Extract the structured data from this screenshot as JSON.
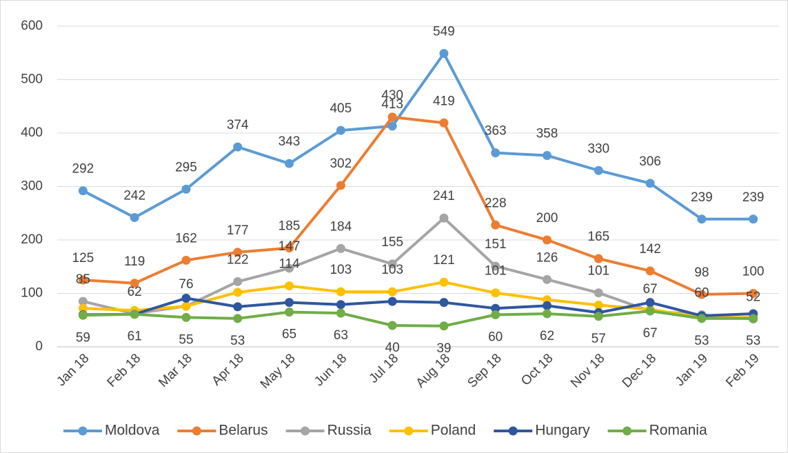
{
  "chart_data": {
    "type": "line",
    "categories": [
      "Jan 18",
      "Feb 18",
      "Mar 18",
      "Apr 18",
      "May 18",
      "Jun 18",
      "Jul 18",
      "Aug 18",
      "Sep 18",
      "Oct 18",
      "Nov 18",
      "Dec 18",
      "Jan 19",
      "Feb 19"
    ],
    "ylim": [
      0,
      600
    ],
    "yticks": [
      0,
      100,
      200,
      300,
      400,
      500,
      600
    ],
    "grid": true,
    "legend": "bottom",
    "series": [
      {
        "name": "Moldova",
        "color": "#5b9bd5",
        "data_labels": true,
        "label_position": "above",
        "values": [
          292,
          242,
          295,
          374,
          343,
          405,
          413,
          549,
          363,
          358,
          330,
          306,
          239,
          239
        ]
      },
      {
        "name": "Belarus",
        "color": "#ed7d31",
        "data_labels": true,
        "label_position": "above",
        "values": [
          125,
          119,
          162,
          177,
          185,
          302,
          430,
          419,
          228,
          200,
          165,
          142,
          98,
          100
        ]
      },
      {
        "name": "Russia",
        "color": "#a5a5a5",
        "data_labels": true,
        "label_position": "above",
        "values": [
          85,
          62,
          76,
          122,
          147,
          184,
          155,
          241,
          151,
          126,
          101,
          67,
          60,
          52
        ]
      },
      {
        "name": "Poland",
        "color": "#ffc000",
        "data_labels": false,
        "label_position": "above",
        "values": [
          72,
          68,
          76,
          102,
          114,
          103,
          103,
          121,
          101,
          88,
          78,
          70,
          55,
          55
        ],
        "value_labels": [
          null,
          null,
          null,
          null,
          "114",
          "103",
          "103",
          "121",
          "101",
          null,
          null,
          null,
          null,
          null
        ]
      },
      {
        "name": "Hungary",
        "color": "#2f56a0",
        "data_labels": false,
        "values": [
          60,
          61,
          91,
          75,
          83,
          79,
          85,
          83,
          72,
          77,
          64,
          83,
          58,
          62
        ]
      },
      {
        "name": "Romania",
        "color": "#70ad47",
        "data_labels": true,
        "label_position": "below",
        "values": [
          59,
          61,
          55,
          53,
          65,
          63,
          40,
          39,
          60,
          62,
          57,
          67,
          53,
          53
        ]
      }
    ]
  }
}
